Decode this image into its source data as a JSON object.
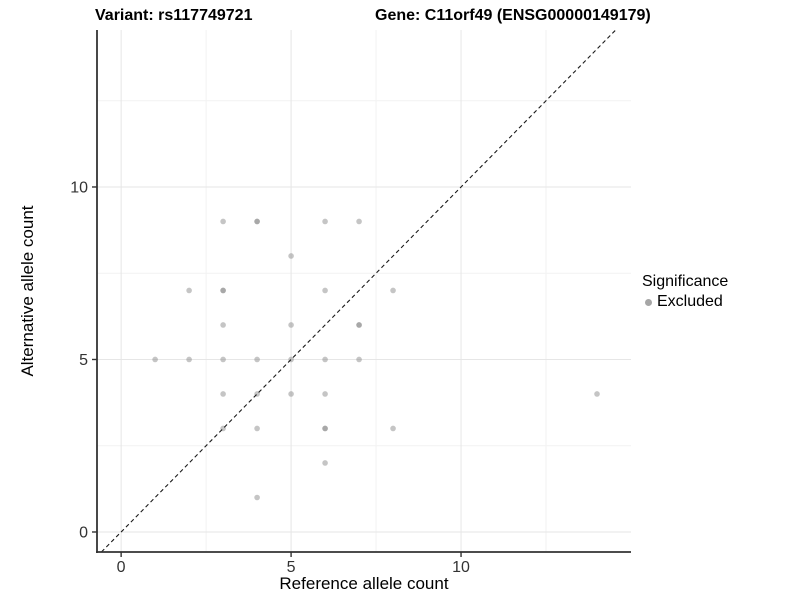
{
  "chart_data": {
    "type": "scatter",
    "title_left": "Variant: rs117749721",
    "title_right": "Gene: C11orf49 (ENSG00000149179)",
    "xlabel": "Reference allele count",
    "ylabel": "Alternative allele count",
    "xlim": [
      -0.71,
      15.0
    ],
    "ylim": [
      -0.58,
      14.55
    ],
    "x_ticks": [
      0,
      5,
      10
    ],
    "y_ticks": [
      0,
      5,
      10
    ],
    "x_minor": [
      2.5,
      7.5,
      12.5
    ],
    "y_minor": [
      2.5,
      7.5,
      12.5
    ],
    "grid": "major+minor on white background",
    "identity_line": {
      "slope": 1,
      "intercept": 0,
      "style": "dashed",
      "color": "#1a1a1a"
    },
    "legend": {
      "title": "Significance",
      "position": "right",
      "items": [
        {
          "label": "Excluded",
          "color": "#a6a6a6"
        }
      ]
    },
    "point_style": {
      "radius": 2.8,
      "color": "#8c8c8c",
      "opacity": 0.5
    },
    "series": [
      {
        "name": "Excluded",
        "points": [
          {
            "x": 3,
            "y": 9,
            "n": 1
          },
          {
            "x": 4,
            "y": 9,
            "n": 2
          },
          {
            "x": 6,
            "y": 9,
            "n": 1
          },
          {
            "x": 7,
            "y": 9,
            "n": 1
          },
          {
            "x": 5,
            "y": 8,
            "n": 1
          },
          {
            "x": 2,
            "y": 7,
            "n": 1
          },
          {
            "x": 3,
            "y": 7,
            "n": 2
          },
          {
            "x": 6,
            "y": 7,
            "n": 1
          },
          {
            "x": 8,
            "y": 7,
            "n": 1
          },
          {
            "x": 3,
            "y": 6,
            "n": 1
          },
          {
            "x": 5,
            "y": 6,
            "n": 1
          },
          {
            "x": 7,
            "y": 6,
            "n": 2
          },
          {
            "x": 1,
            "y": 5,
            "n": 1
          },
          {
            "x": 2,
            "y": 5,
            "n": 1
          },
          {
            "x": 3,
            "y": 5,
            "n": 1
          },
          {
            "x": 4,
            "y": 5,
            "n": 1
          },
          {
            "x": 5,
            "y": 5,
            "n": 1
          },
          {
            "x": 6,
            "y": 5,
            "n": 1
          },
          {
            "x": 7,
            "y": 5,
            "n": 1
          },
          {
            "x": 3,
            "y": 4,
            "n": 1
          },
          {
            "x": 4,
            "y": 4,
            "n": 1
          },
          {
            "x": 5,
            "y": 4,
            "n": 1
          },
          {
            "x": 6,
            "y": 4,
            "n": 1
          },
          {
            "x": 14,
            "y": 4,
            "n": 1
          },
          {
            "x": 3,
            "y": 3,
            "n": 1
          },
          {
            "x": 4,
            "y": 3,
            "n": 1
          },
          {
            "x": 6,
            "y": 3,
            "n": 2
          },
          {
            "x": 8,
            "y": 3,
            "n": 1
          },
          {
            "x": 6,
            "y": 2,
            "n": 1
          },
          {
            "x": 4,
            "y": 1,
            "n": 1
          }
        ]
      }
    ],
    "colors": {
      "background": "#ffffff",
      "axis": "#333333",
      "grid_major": "#e6e6e6",
      "grid_minor": "#f2f2f2",
      "tick_label": "#333333"
    }
  }
}
